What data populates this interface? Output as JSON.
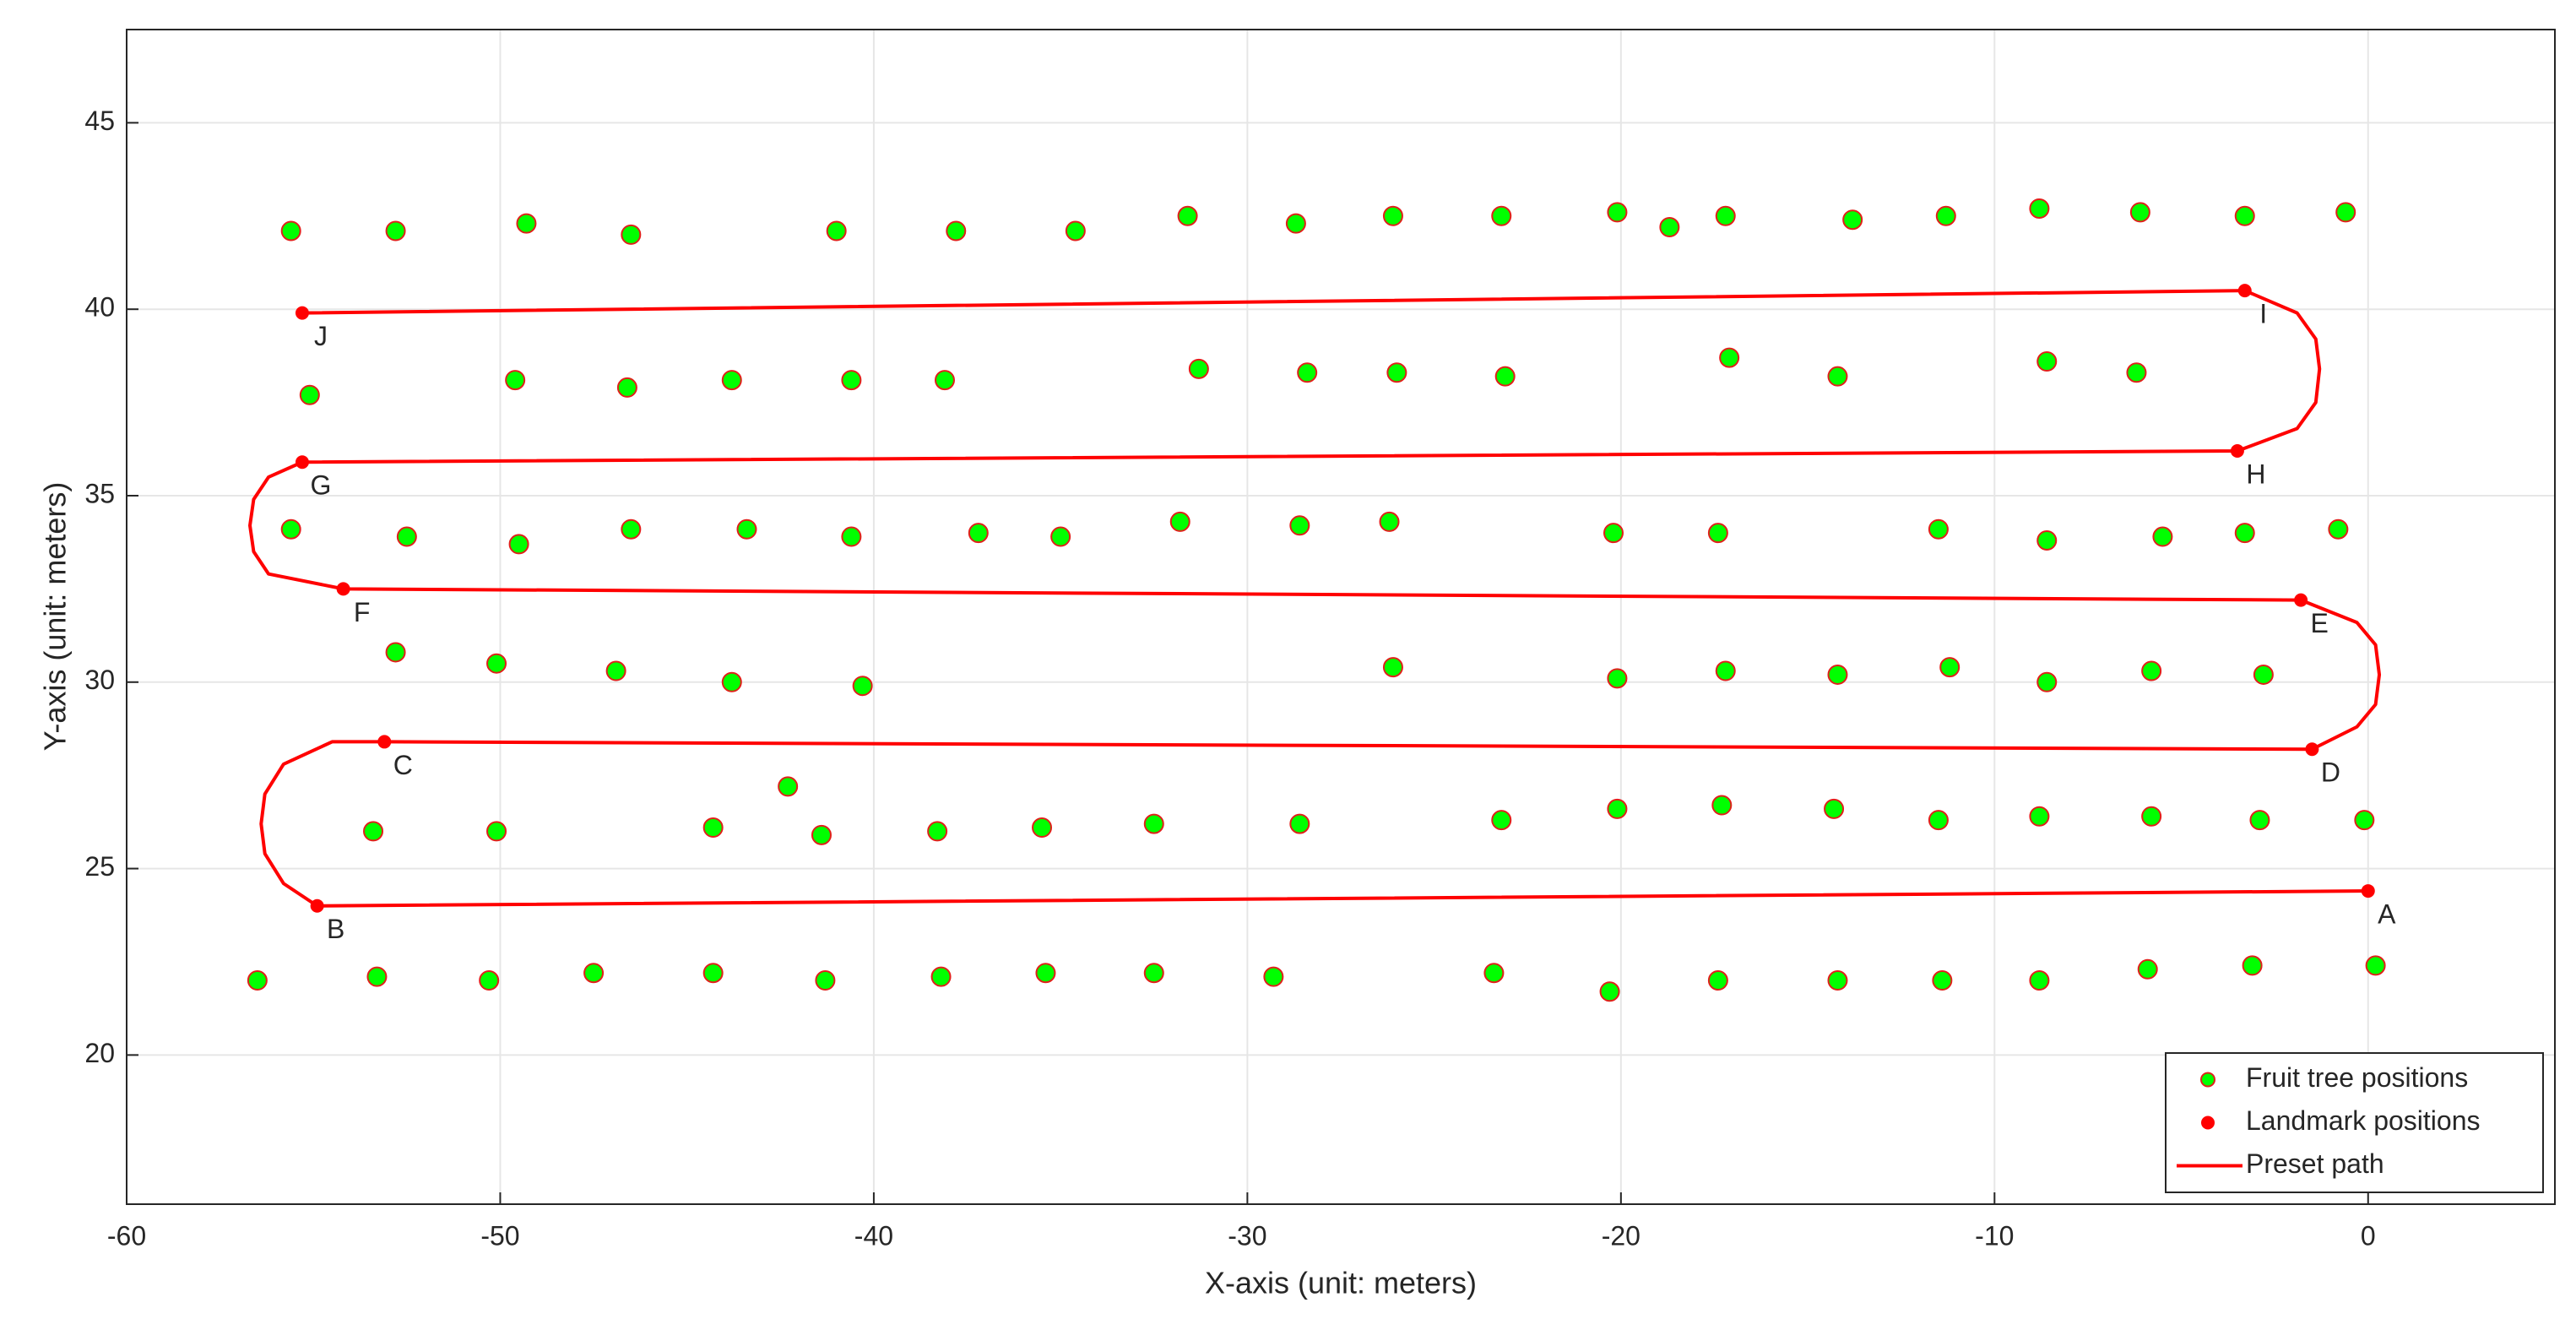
{
  "chart_data": {
    "type": "scatter",
    "xlabel": "X-axis (unit: meters)",
    "ylabel": "Y-axis (unit: meters)",
    "xlim": [
      -60,
      5
    ],
    "ylim": [
      16,
      47.5
    ],
    "xticks": [
      -60,
      -50,
      -40,
      -30,
      -20,
      -10,
      0
    ],
    "yticks": [
      20,
      25,
      30,
      35,
      40,
      45
    ],
    "grid": true,
    "legend": "lower right",
    "series": [
      {
        "name": "Fruit tree positions",
        "kind": "points",
        "color": "#00ff00",
        "edgecolor": "#e0201a",
        "x": [
          -56.5,
          -53.3,
          -50.3,
          -47.5,
          -44.3,
          -41.3,
          -38.2,
          -35.4,
          -32.5,
          -29.3,
          -23.4,
          -20.3,
          -17.4,
          -14.2,
          -11.4,
          -8.8,
          -5.9,
          -3.1,
          0.2,
          -53.4,
          -50.1,
          -44.3,
          -42.3,
          -41.4,
          -38.3,
          -35.5,
          -32.5,
          -28.6,
          -23.2,
          -20.1,
          -17.3,
          -14.3,
          -11.5,
          -8.8,
          -5.8,
          -2.9,
          -0.1,
          -52.8,
          -50.1,
          -46.9,
          -43.8,
          -40.3,
          -26.1,
          -20.1,
          -17.2,
          -14.2,
          -11.2,
          -8.6,
          -5.8,
          -2.8,
          -55.6,
          -52.5,
          -49.5,
          -46.5,
          -43.4,
          -40.6,
          -37.2,
          -35.0,
          -31.8,
          -28.6,
          -26.2,
          -20.2,
          -17.4,
          -11.5,
          -8.6,
          -5.5,
          -3.3,
          -0.8,
          -55.1,
          -49.6,
          -46.6,
          -43.8,
          -40.6,
          -38.1,
          -31.3,
          -28.4,
          -26.0,
          -23.1,
          -17.1,
          -14.2,
          -8.6,
          -6.2,
          -55.6,
          -52.8,
          -49.3,
          -46.5,
          -41.0,
          -37.8,
          -34.6,
          -31.6,
          -28.7,
          -26.1,
          -23.2,
          -20.1,
          -18.7,
          -17.2,
          -13.8,
          -11.3,
          -8.8,
          -6.1,
          -3.3,
          -0.6
        ],
        "values": [
          22.0,
          22.1,
          22.0,
          22.2,
          22.2,
          22.0,
          22.1,
          22.2,
          22.2,
          22.1,
          22.2,
          21.7,
          22.0,
          22.0,
          22.0,
          22.0,
          22.3,
          22.4,
          22.4,
          26.0,
          26.0,
          26.1,
          27.2,
          25.9,
          26.0,
          26.1,
          26.2,
          26.2,
          26.3,
          26.6,
          26.7,
          26.6,
          26.3,
          26.4,
          26.4,
          26.3,
          26.3,
          30.8,
          30.5,
          30.3,
          30.0,
          29.9,
          30.4,
          30.1,
          30.3,
          30.2,
          30.4,
          30.0,
          30.3,
          30.2,
          34.1,
          33.9,
          33.7,
          34.1,
          34.1,
          33.9,
          34.0,
          33.9,
          34.3,
          34.2,
          34.3,
          34.0,
          34.0,
          34.1,
          33.8,
          33.9,
          34.0,
          34.1,
          37.7,
          38.1,
          37.9,
          38.1,
          38.1,
          38.1,
          38.4,
          38.3,
          38.3,
          38.2,
          38.7,
          38.2,
          38.6,
          38.3,
          42.1,
          42.1,
          42.3,
          42.0,
          42.1,
          42.1,
          42.1,
          42.5,
          42.3,
          42.5,
          42.5,
          42.6,
          42.2,
          42.5,
          42.4,
          42.5,
          42.7,
          42.6,
          42.5,
          42.6
        ]
      },
      {
        "name": "Landmark positions",
        "kind": "points",
        "color": "#ff0000",
        "x": [
          0,
          -54.9,
          -53.1,
          -1.5,
          -1.8,
          -54.2,
          -55.3,
          -3.5,
          -3.3,
          -55.3
        ],
        "values": [
          24.4,
          24.0,
          28.4,
          28.2,
          32.2,
          32.5,
          35.9,
          36.2,
          40.5,
          39.9
        ],
        "labels": [
          "A",
          "B",
          "C",
          "D",
          "E",
          "F",
          "G",
          "H",
          "I",
          "J"
        ]
      },
      {
        "name": "Preset path",
        "kind": "line",
        "color": "#ff0000",
        "x": [
          0,
          -54.9,
          -55.8,
          -56.3,
          -56.4,
          -56.3,
          -55.8,
          -54.5,
          -53.1,
          -1.5,
          -0.3,
          0.2,
          0.3,
          0.2,
          -0.3,
          -1.8,
          -54.2,
          -56.2,
          -56.6,
          -56.7,
          -56.6,
          -56.2,
          -55.3,
          -3.5,
          -1.9,
          -1.4,
          -1.3,
          -1.4,
          -1.9,
          -3.3,
          -55.3
        ],
        "values": [
          24.4,
          24.0,
          24.6,
          25.4,
          26.2,
          27.0,
          27.8,
          28.4,
          28.4,
          28.2,
          28.8,
          29.4,
          30.2,
          31.0,
          31.6,
          32.2,
          32.5,
          32.9,
          33.5,
          34.2,
          34.9,
          35.5,
          35.9,
          36.2,
          36.8,
          37.5,
          38.4,
          39.2,
          39.9,
          40.5,
          39.9
        ]
      }
    ]
  }
}
